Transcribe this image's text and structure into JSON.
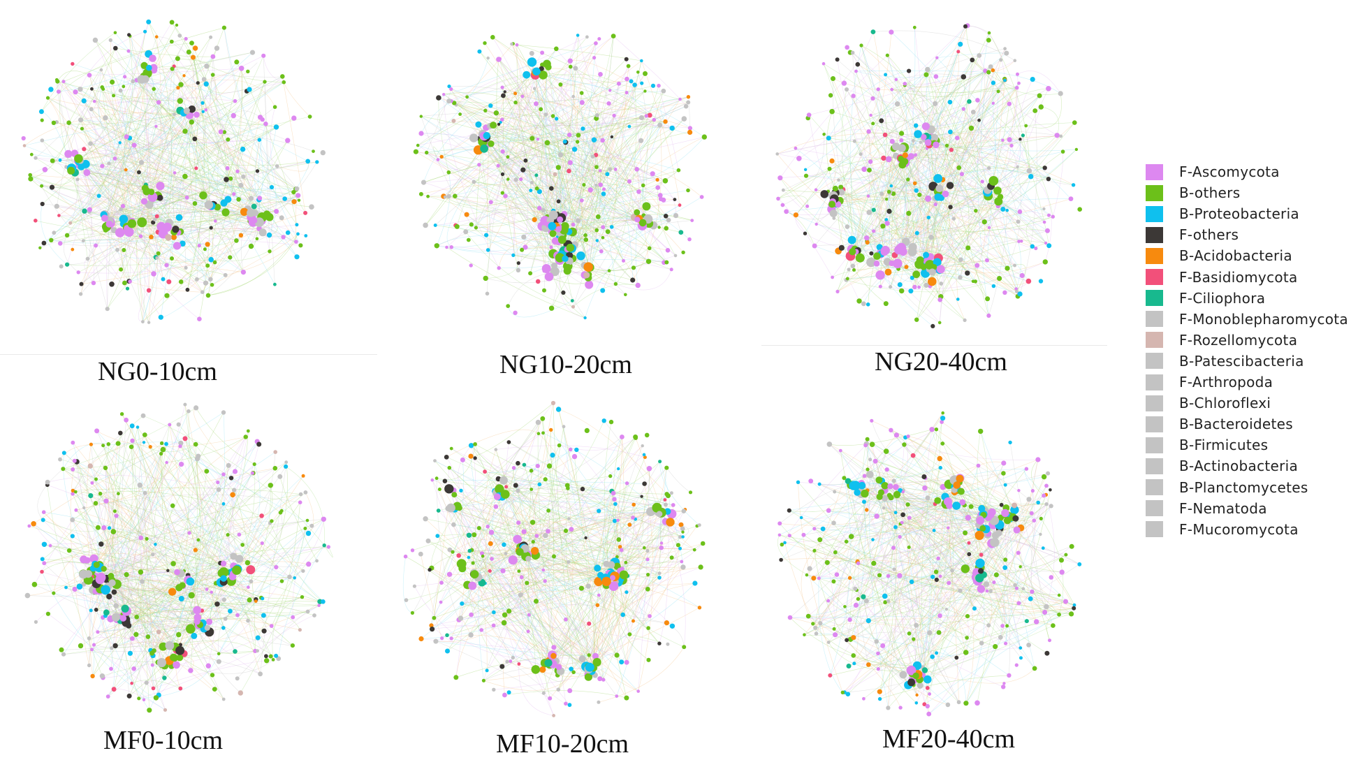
{
  "panels": [
    {
      "label": "NG0-10cm"
    },
    {
      "label": "NG10-20cm"
    },
    {
      "label": "NG20-40cm"
    },
    {
      "label": "MF0-10cm"
    },
    {
      "label": "MF10-20cm"
    },
    {
      "label": "MF20-40cm"
    }
  ],
  "legend": [
    {
      "label": "F-Ascomycota",
      "color": "#dd88f0"
    },
    {
      "label": "B-others",
      "color": "#6cc01a"
    },
    {
      "label": "B-Proteobacteria",
      "color": "#0fc0ee"
    },
    {
      "label": "F-others",
      "color": "#3c3836"
    },
    {
      "label": "B-Acidobacteria",
      "color": "#f78a0e"
    },
    {
      "label": "F-Basidiomycota",
      "color": "#f2507a"
    },
    {
      "label": "F-Ciliophora",
      "color": "#18b98e"
    },
    {
      "label": "F-Monoblepharomycota",
      "color": "#c3c3c3"
    },
    {
      "label": "F-Rozellomycota",
      "color": "#d5b6b0"
    },
    {
      "label": "B-Patescibacteria",
      "color": "#c3c3c3"
    },
    {
      "label": "F-Arthropoda",
      "color": "#c3c3c3"
    },
    {
      "label": "B-Chloroflexi",
      "color": "#c3c3c3"
    },
    {
      "label": "B-Bacteroidetes",
      "color": "#c3c3c3"
    },
    {
      "label": "B-Firmicutes",
      "color": "#c3c3c3"
    },
    {
      "label": "B-Actinobacteria",
      "color": "#c3c3c3"
    },
    {
      "label": "B-Planctomycetes",
      "color": "#c3c3c3"
    },
    {
      "label": "F-Nematoda",
      "color": "#c3c3c3"
    },
    {
      "label": "F-Mucoromycota",
      "color": "#c3c3c3"
    }
  ]
}
